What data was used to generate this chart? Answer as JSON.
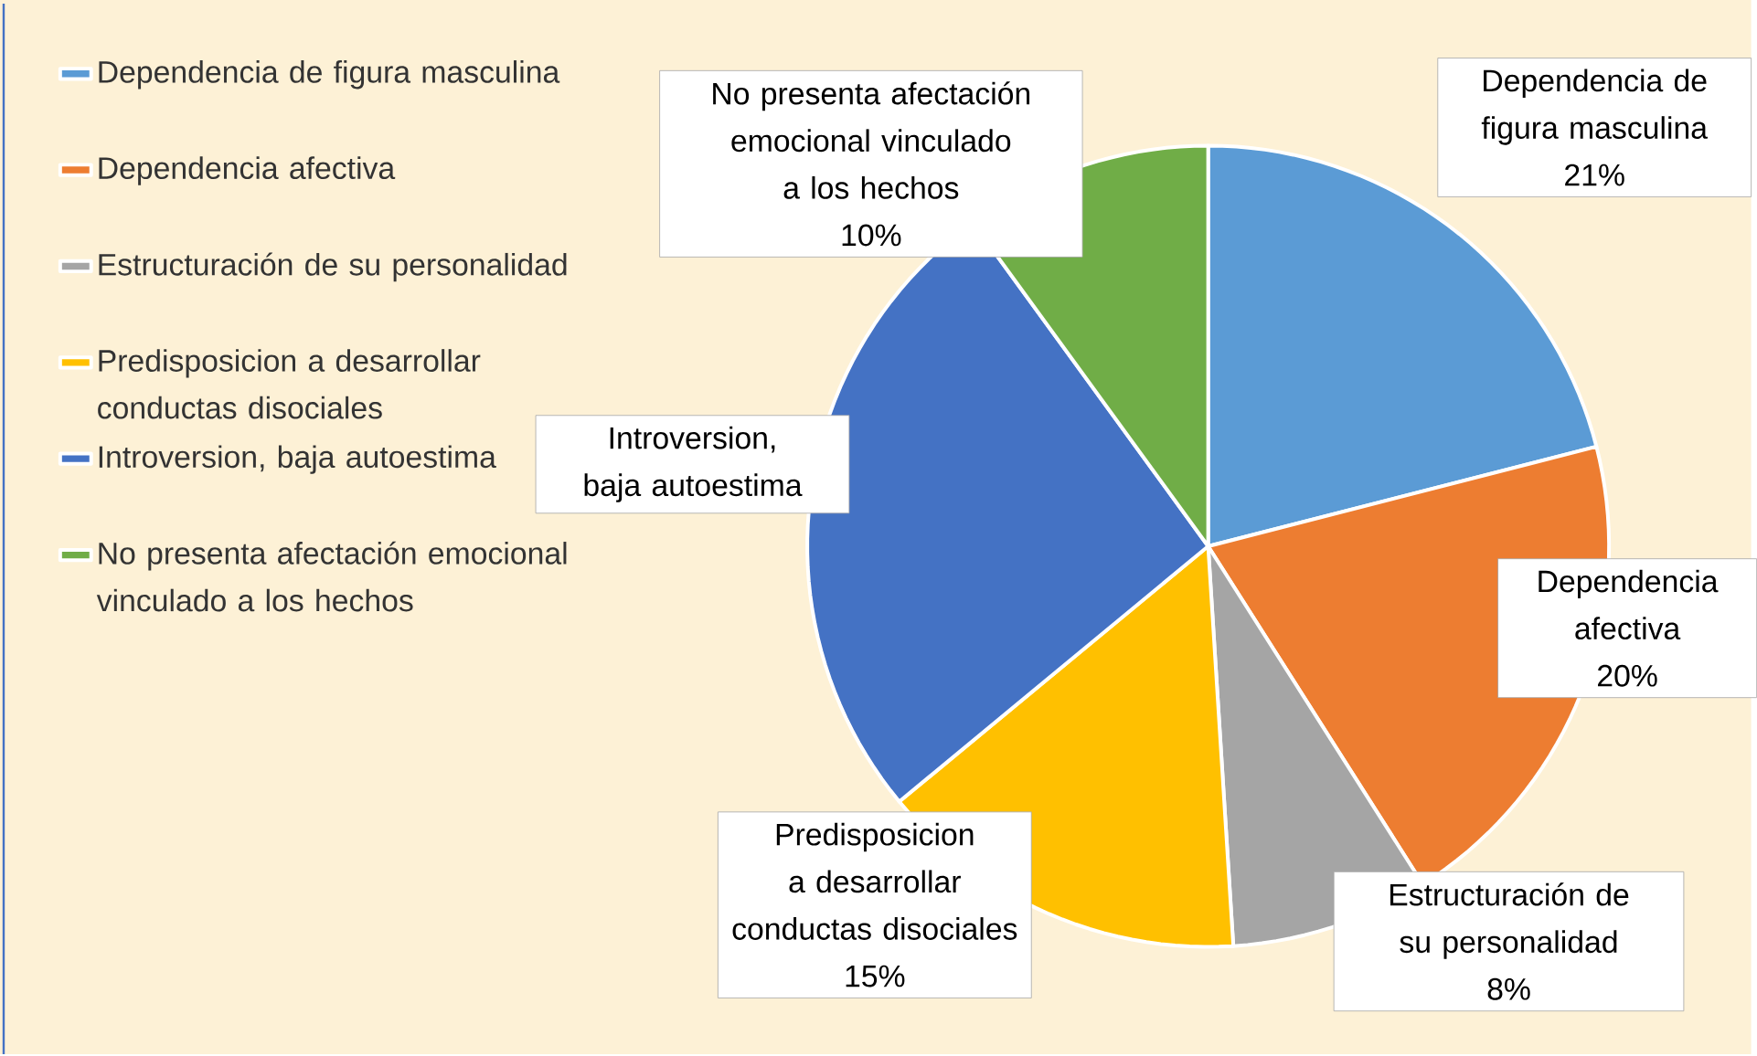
{
  "chart_data": {
    "type": "pie",
    "categories": [
      "Dependencia de figura masculina",
      "Dependencia afectiva",
      "Estructuración de su personalidad",
      "Predisposicion a desarrollar conductas disociales",
      "Introversion, baja autoestima",
      "No presenta afectación emocional vinculado a los hechos"
    ],
    "values": [
      21,
      20,
      8,
      15,
      26,
      10
    ],
    "colors": [
      "#5b9bd5",
      "#ed7d31",
      "#a5a5a5",
      "#ffc000",
      "#4472c4",
      "#70ad47"
    ],
    "value_labels": [
      "21%",
      "20%",
      "8%",
      "15%",
      null,
      "10%"
    ],
    "legend": "left"
  }
}
